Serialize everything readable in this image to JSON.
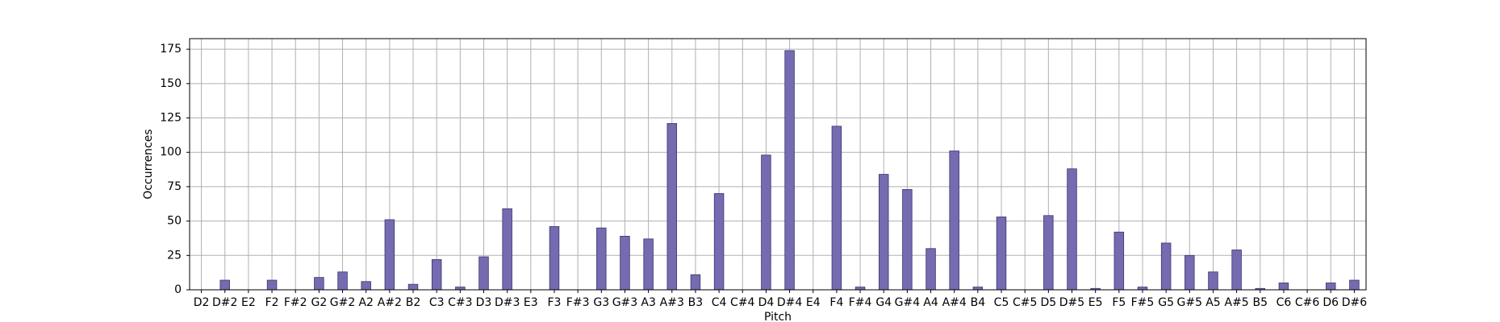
{
  "chart_data": {
    "type": "bar",
    "x_label": "Pitch",
    "y_label": "Occurrences",
    "categories": [
      "D2",
      "D#2",
      "E2",
      "F2",
      "F#2",
      "G2",
      "G#2",
      "A2",
      "A#2",
      "B2",
      "C3",
      "C#3",
      "D3",
      "D#3",
      "E3",
      "F3",
      "F#3",
      "G3",
      "G#3",
      "A3",
      "A#3",
      "B3",
      "C4",
      "C#4",
      "D4",
      "D#4",
      "E4",
      "F4",
      "F#4",
      "G4",
      "G#4",
      "A4",
      "A#4",
      "B4",
      "C5",
      "C#5",
      "D5",
      "D#5",
      "E5",
      "F5",
      "F#5",
      "G5",
      "G#5",
      "A5",
      "A#5",
      "B5",
      "C6",
      "C#6",
      "D6",
      "D#6"
    ],
    "values": [
      0,
      7,
      0,
      7,
      0,
      9,
      13,
      6,
      51,
      4,
      22,
      2,
      24,
      59,
      0,
      46,
      0,
      45,
      39,
      37,
      121,
      11,
      70,
      0,
      98,
      174,
      0,
      119,
      2,
      84,
      73,
      30,
      101,
      2,
      53,
      0,
      54,
      88,
      1,
      42,
      2,
      34,
      25,
      13,
      29,
      1,
      5,
      0,
      5,
      7
    ],
    "color": "#756bb1",
    "ylim": [
      0,
      182.7
    ],
    "yticks": [
      0,
      25,
      50,
      75,
      100,
      125,
      150,
      175
    ],
    "grid": true
  }
}
